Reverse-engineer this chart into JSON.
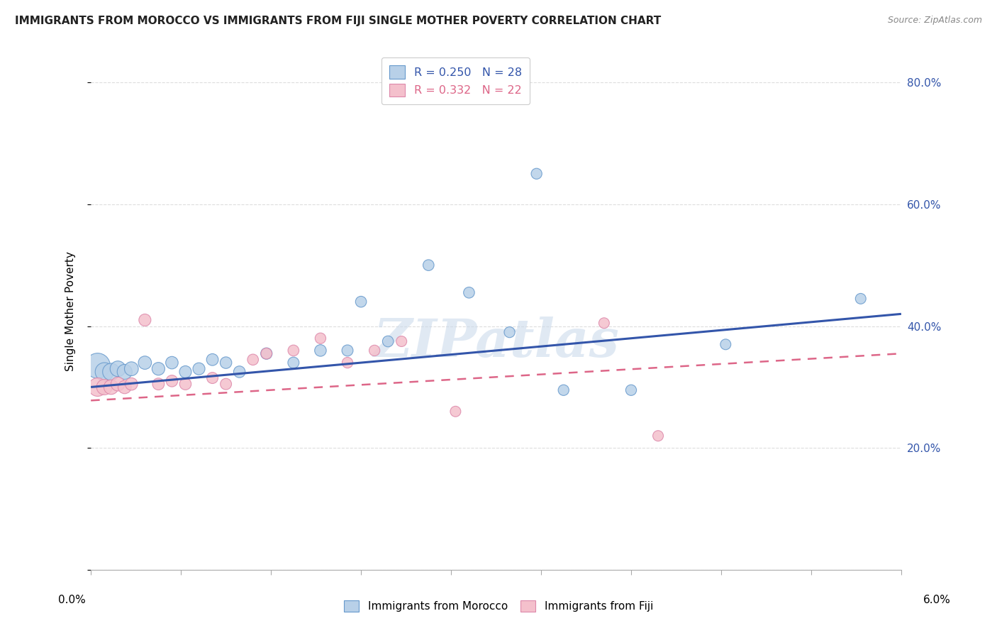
{
  "title": "IMMIGRANTS FROM MOROCCO VS IMMIGRANTS FROM FIJI SINGLE MOTHER POVERTY CORRELATION CHART",
  "source": "Source: ZipAtlas.com",
  "ylabel": "Single Mother Poverty",
  "r_morocco": 0.25,
  "n_morocco": 28,
  "r_fiji": 0.332,
  "n_fiji": 22,
  "background_color": "#ffffff",
  "watermark": "ZIPatlas",
  "xlim": [
    0.0,
    0.06
  ],
  "ylim": [
    0.0,
    0.85
  ],
  "ytick_vals": [
    0.0,
    0.2,
    0.4,
    0.6,
    0.8
  ],
  "ytick_labels": [
    "",
    "20.0%",
    "40.0%",
    "60.0%",
    "80.0%"
  ],
  "morocco_color": "#b8d0e8",
  "fiji_color": "#f4c0cc",
  "morocco_edge_color": "#6699cc",
  "fiji_edge_color": "#dd88aa",
  "morocco_line_color": "#3355aa",
  "fiji_line_color": "#dd6688",
  "morocco_x": [
    0.0005,
    0.001,
    0.0015,
    0.002,
    0.0025,
    0.003,
    0.004,
    0.005,
    0.006,
    0.007,
    0.008,
    0.009,
    0.01,
    0.011,
    0.013,
    0.015,
    0.017,
    0.019,
    0.02,
    0.022,
    0.025,
    0.028,
    0.031,
    0.033,
    0.035,
    0.04,
    0.047,
    0.057
  ],
  "morocco_y": [
    0.335,
    0.325,
    0.325,
    0.33,
    0.325,
    0.33,
    0.34,
    0.33,
    0.34,
    0.325,
    0.33,
    0.345,
    0.34,
    0.325,
    0.355,
    0.34,
    0.36,
    0.36,
    0.44,
    0.375,
    0.5,
    0.455,
    0.39,
    0.65,
    0.295,
    0.295,
    0.37,
    0.445
  ],
  "morocco_sizes": [
    650,
    350,
    300,
    250,
    230,
    200,
    180,
    170,
    160,
    150,
    150,
    145,
    140,
    140,
    135,
    130,
    140,
    130,
    125,
    125,
    125,
    125,
    120,
    120,
    120,
    120,
    115,
    115
  ],
  "fiji_x": [
    0.0005,
    0.001,
    0.0015,
    0.002,
    0.0025,
    0.003,
    0.004,
    0.005,
    0.006,
    0.007,
    0.009,
    0.01,
    0.012,
    0.013,
    0.015,
    0.017,
    0.019,
    0.021,
    0.023,
    0.027,
    0.038,
    0.042
  ],
  "fiji_y": [
    0.3,
    0.3,
    0.3,
    0.305,
    0.3,
    0.305,
    0.41,
    0.305,
    0.31,
    0.305,
    0.315,
    0.305,
    0.345,
    0.355,
    0.36,
    0.38,
    0.34,
    0.36,
    0.375,
    0.26,
    0.405,
    0.22
  ],
  "fiji_sizes": [
    350,
    250,
    220,
    200,
    180,
    160,
    150,
    145,
    140,
    140,
    130,
    130,
    125,
    125,
    125,
    120,
    120,
    120,
    115,
    115,
    115,
    115
  ],
  "morocco_line_x0": 0.0,
  "morocco_line_y0": 0.3,
  "morocco_line_x1": 0.06,
  "morocco_line_y1": 0.42,
  "fiji_line_x0": 0.0,
  "fiji_line_y0": 0.278,
  "fiji_line_x1": 0.06,
  "fiji_line_y1": 0.355,
  "xtick_positions": [
    0.0,
    0.006667,
    0.013333,
    0.02,
    0.026667,
    0.033333,
    0.04,
    0.046667,
    0.053333,
    0.06
  ]
}
